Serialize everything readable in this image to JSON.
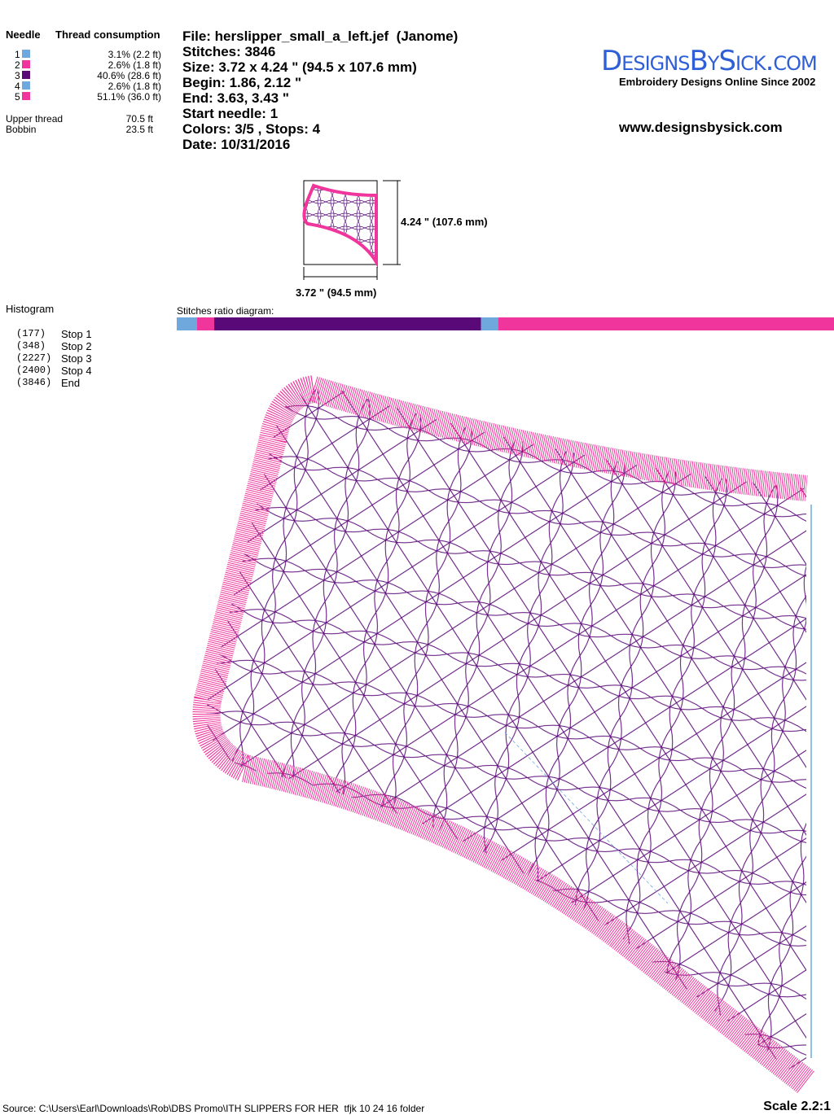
{
  "needles": {
    "header_needle": "Needle",
    "header_consumption": "Thread consumption",
    "rows": [
      {
        "number": "1",
        "color": "#6fa8dc",
        "consumption": "3.1% (2.2 ft)"
      },
      {
        "number": "2",
        "color": "#f0369c",
        "consumption": "2.6% (1.8 ft)"
      },
      {
        "number": "3",
        "color": "#5a0a78",
        "consumption": "40.6% (28.6 ft)"
      },
      {
        "number": "4",
        "color": "#6fa8dc",
        "consumption": "2.6% (1.8 ft)"
      },
      {
        "number": "5",
        "color": "#f0369c",
        "consumption": "51.1% (36.0 ft)"
      }
    ]
  },
  "threads": [
    {
      "label": "Upper thread",
      "value": "70.5 ft"
    },
    {
      "label": "Bobbin",
      "value": "23.5 ft"
    }
  ],
  "info": [
    "File: herslipper_small_a_left.jef  (Janome)",
    "Stitches: 3846",
    "Size: 3.72 x 4.24 \" (94.5 x 107.6 mm)",
    "Begin: 1.86, 2.12 \"",
    "End: 3.63, 3.43 \"",
    "Start needle: 1",
    "Colors: 3/5 , Stops: 4",
    "Date: 10/31/2016"
  ],
  "logo": {
    "brand": "DesignsBySick.com",
    "tagline": "Embroidery Designs Online Since 2002",
    "url": "www.designsbysick.com"
  },
  "preview": {
    "height": "4.24 \" (107.6 mm)",
    "width": "3.72 \" (94.5 mm)"
  },
  "histogram": {
    "title": "Histogram",
    "rows": [
      {
        "count": "(177)",
        "label": "Stop 1"
      },
      {
        "count": "(348)",
        "label": "Stop 2"
      },
      {
        "count": "(2227)",
        "label": "Stop 3"
      },
      {
        "count": "(2400)",
        "label": "Stop 4"
      },
      {
        "count": "(3846)",
        "label": "End"
      }
    ]
  },
  "ratio": {
    "title": "Stitches ratio diagram:",
    "values": [
      3.1,
      2.6,
      40.6,
      2.6,
      51.1
    ]
  },
  "footer": {
    "source": "Source: C:\\Users\\Earl\\Downloads\\Rob\\DBS Promo\\ITH SLIPPERS FOR HER  tfjk 10 24 16 folder",
    "scale": "Scale 2.2:1"
  }
}
